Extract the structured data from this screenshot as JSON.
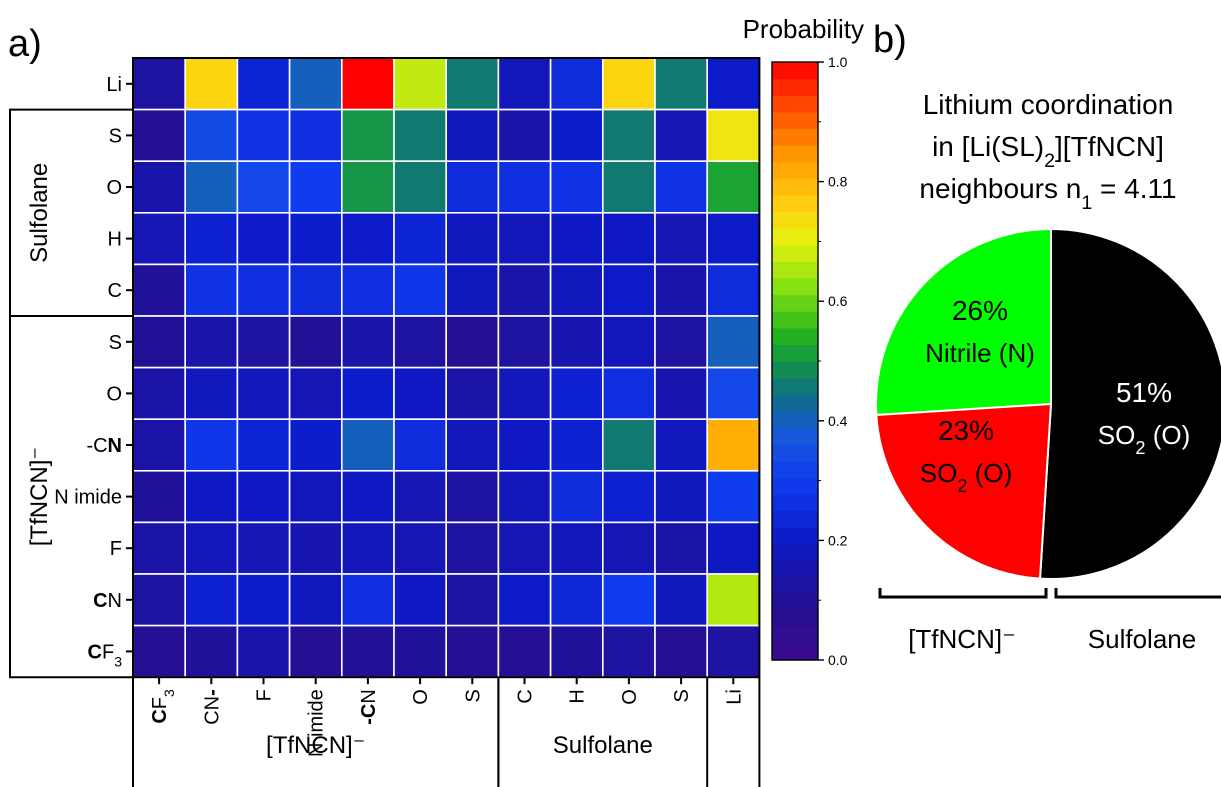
{
  "panel_a_label": "a)",
  "panel_b_label": "b)",
  "chart_data": [
    {
      "type": "heatmap",
      "title": "",
      "colorbar_label": "Probability",
      "colorbar_range": [
        0.0,
        1.0
      ],
      "colorbar_ticks": [
        "0.0",
        "0.2",
        "0.4",
        "0.6",
        "0.8",
        "1.0"
      ],
      "rows": [
        {
          "label": "Li",
          "bold": ""
        },
        {
          "label": "S",
          "bold": ""
        },
        {
          "label": "O",
          "bold": ""
        },
        {
          "label": "H",
          "bold": ""
        },
        {
          "label": "C",
          "bold": ""
        },
        {
          "label": "S",
          "bold": ""
        },
        {
          "label": "O",
          "bold": ""
        },
        {
          "label": "-C",
          "bold": "N"
        },
        {
          "label": "N imide",
          "bold": ""
        },
        {
          "label": "F",
          "bold": ""
        },
        {
          "label": "N",
          "bold": "C",
          "bold_first": true
        },
        {
          "label": "F",
          "bold": "C",
          "bold_first": true,
          "sub": "3"
        }
      ],
      "columns": [
        {
          "label": "F",
          "bold": "C",
          "bold_first": true,
          "sub": "3"
        },
        {
          "label": "CN",
          "bold": "-"
        },
        {
          "label": "F"
        },
        {
          "label": "N imide"
        },
        {
          "label": "N",
          "bold": "-C",
          "bold_first": true
        },
        {
          "label": "O"
        },
        {
          "label": "S"
        },
        {
          "label": "C"
        },
        {
          "label": "H"
        },
        {
          "label": "O"
        },
        {
          "label": "S"
        },
        {
          "label": "Li"
        }
      ],
      "row_groups": [
        {
          "name": "Sulfolane",
          "rows": [
            1,
            4
          ]
        },
        {
          "name": "[TfNCN]⁻",
          "rows": [
            5,
            11
          ]
        }
      ],
      "column_groups": [
        {
          "name": "[TfNCN]⁻",
          "cols": [
            0,
            6
          ]
        },
        {
          "name": "Sulfolane",
          "cols": [
            7,
            10
          ]
        }
      ],
      "values": [
        [
          0.12,
          0.75,
          0.23,
          0.4,
          1.0,
          0.67,
          0.46,
          0.17,
          0.25,
          0.75,
          0.46,
          0.2
        ],
        [
          0.09,
          0.34,
          0.27,
          0.26,
          0.5,
          0.46,
          0.18,
          0.14,
          0.21,
          0.46,
          0.16,
          0.72
        ],
        [
          0.14,
          0.4,
          0.33,
          0.3,
          0.5,
          0.46,
          0.25,
          0.26,
          0.27,
          0.46,
          0.27,
          0.52
        ],
        [
          0.16,
          0.22,
          0.2,
          0.21,
          0.2,
          0.23,
          0.18,
          0.17,
          0.19,
          0.19,
          0.16,
          0.2
        ],
        [
          0.11,
          0.27,
          0.26,
          0.25,
          0.26,
          0.28,
          0.18,
          0.14,
          0.18,
          0.2,
          0.14,
          0.25
        ],
        [
          0.1,
          0.14,
          0.12,
          0.1,
          0.14,
          0.12,
          0.08,
          0.12,
          0.15,
          0.17,
          0.12,
          0.4
        ],
        [
          0.13,
          0.18,
          0.17,
          0.16,
          0.21,
          0.19,
          0.13,
          0.17,
          0.22,
          0.26,
          0.15,
          0.33
        ],
        [
          0.13,
          0.28,
          0.23,
          0.21,
          0.4,
          0.25,
          0.17,
          0.19,
          0.22,
          0.46,
          0.18,
          0.81
        ],
        [
          0.11,
          0.19,
          0.19,
          0.17,
          0.19,
          0.16,
          0.12,
          0.17,
          0.25,
          0.22,
          0.18,
          0.3
        ],
        [
          0.13,
          0.17,
          0.16,
          0.15,
          0.17,
          0.16,
          0.12,
          0.16,
          0.17,
          0.16,
          0.13,
          0.19
        ],
        [
          0.12,
          0.22,
          0.21,
          0.18,
          0.26,
          0.19,
          0.12,
          0.2,
          0.24,
          0.3,
          0.18,
          0.66
        ],
        [
          0.08,
          0.11,
          0.14,
          0.08,
          0.1,
          0.11,
          0.09,
          0.09,
          0.11,
          0.12,
          0.08,
          0.12
        ]
      ]
    },
    {
      "type": "pie",
      "title_lines": [
        "Lithium coordination",
        "in [Li(SL)",
        "2",
        "][TfNCN]",
        "neighbours n",
        "1",
        " = 4.11"
      ],
      "slices": [
        {
          "label": "Nitrile (N)",
          "value": 26,
          "percent_label": "26%",
          "color": "#00ff00",
          "text_color": "#000000"
        },
        {
          "label": "SO",
          "label_sub": "2",
          "label_tail": " (O)",
          "value": 23,
          "percent_label": "23%",
          "color": "#ff0000",
          "text_color": "#000000"
        },
        {
          "label": "SO",
          "label_sub": "2",
          "label_tail": " (O)",
          "value": 51,
          "percent_label": "51%",
          "color": "#000000",
          "text_color": "#ffffff"
        }
      ],
      "group_labels": [
        {
          "name": "[TfNCN]⁻",
          "slices": [
            0,
            1
          ]
        },
        {
          "name": "Sulfolane",
          "slices": [
            2
          ]
        }
      ]
    }
  ]
}
